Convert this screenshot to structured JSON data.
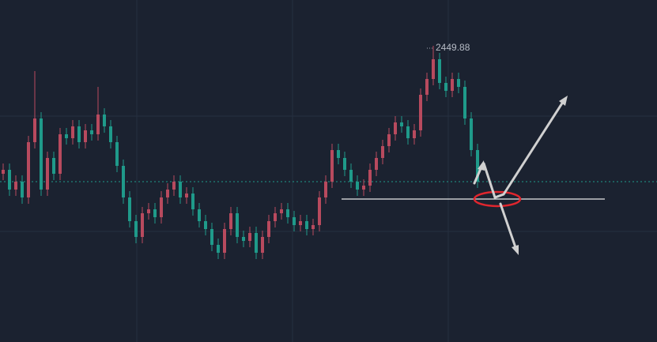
{
  "chart_data": {
    "type": "candlestick",
    "up_color": "#b84a5e",
    "down_color": "#1f9a8a",
    "ylim": [
      2412.38,
      2455.68
    ],
    "open": [
      2433.68,
      2434.18,
      2431.68,
      2432.68,
      2430.68,
      2437.68,
      2440.68,
      2431.68,
      2435.68,
      2433.68,
      2438.68,
      2438.18,
      2439.68,
      2437.68,
      2439.18,
      2438.68,
      2441.18,
      2439.68,
      2437.68,
      2434.68,
      2430.68,
      2427.68,
      2425.68,
      2428.68,
      2429.18,
      2428.18,
      2430.68,
      2431.68,
      2432.68,
      2430.68,
      2431.18,
      2429.18,
      2427.68,
      2426.68,
      2424.68,
      2423.68,
      2426.68,
      2428.68,
      2425.68,
      2425.18,
      2426.18,
      2423.68,
      2425.68,
      2427.68,
      2428.68,
      2429.18,
      2428.18,
      2427.18,
      2427.68,
      2426.68,
      2427.18,
      2430.68,
      2432.68,
      2436.68,
      2435.68,
      2434.18,
      2432.68,
      2431.68,
      2432.18,
      2434.18,
      2435.68,
      2437.18,
      2438.68,
      2440.18,
      2439.68,
      2438.18,
      2439.18,
      2443.68,
      2445.68,
      2448.18,
      2445.18,
      2444.18,
      2445.68,
      2444.68,
      2440.68,
      2436.68
    ],
    "high": [
      2434.98,
      2434.98,
      2433.48,
      2433.48,
      2438.48,
      2446.68,
      2441.48,
      2436.48,
      2436.48,
      2439.48,
      2439.48,
      2440.48,
      2440.48,
      2439.98,
      2439.98,
      2444.68,
      2441.98,
      2440.48,
      2438.48,
      2435.48,
      2431.48,
      2428.48,
      2429.48,
      2429.98,
      2429.98,
      2431.48,
      2432.48,
      2433.48,
      2433.48,
      2431.98,
      2431.98,
      2429.98,
      2428.48,
      2427.48,
      2425.48,
      2427.48,
      2429.48,
      2429.48,
      2426.48,
      2426.98,
      2426.98,
      2426.48,
      2428.48,
      2429.48,
      2429.98,
      2429.98,
      2428.98,
      2428.48,
      2428.48,
      2427.98,
      2431.48,
      2433.48,
      2437.48,
      2437.48,
      2436.48,
      2434.98,
      2433.48,
      2432.98,
      2434.98,
      2436.48,
      2437.98,
      2439.48,
      2440.98,
      2440.98,
      2440.48,
      2439.98,
      2444.48,
      2446.48,
      2449.88,
      2448.98,
      2445.98,
      2446.48,
      2446.48,
      2445.48,
      2441.48,
      2437.48
    ],
    "low": [
      2432.88,
      2430.88,
      2430.88,
      2429.88,
      2429.88,
      2436.88,
      2430.88,
      2430.88,
      2432.88,
      2432.88,
      2437.38,
      2437.38,
      2436.88,
      2436.88,
      2437.88,
      2437.88,
      2438.88,
      2436.88,
      2433.88,
      2429.88,
      2426.88,
      2424.88,
      2424.88,
      2427.88,
      2427.38,
      2427.38,
      2429.88,
      2430.88,
      2429.88,
      2429.88,
      2428.38,
      2426.88,
      2425.88,
      2423.88,
      2422.88,
      2422.88,
      2425.88,
      2424.88,
      2424.38,
      2424.38,
      2422.88,
      2422.88,
      2424.88,
      2426.88,
      2427.88,
      2427.38,
      2426.38,
      2426.38,
      2425.88,
      2425.88,
      2426.38,
      2429.88,
      2431.88,
      2434.88,
      2433.38,
      2431.88,
      2430.88,
      2430.88,
      2431.38,
      2433.38,
      2434.88,
      2436.38,
      2437.88,
      2438.88,
      2437.38,
      2437.38,
      2438.38,
      2442.88,
      2444.88,
      2444.38,
      2443.38,
      2443.38,
      2443.88,
      2439.88,
      2435.88,
      2431.88
    ],
    "close": [
      2434.18,
      2431.68,
      2432.68,
      2430.68,
      2437.68,
      2440.68,
      2431.68,
      2435.68,
      2433.68,
      2438.68,
      2438.18,
      2439.68,
      2437.68,
      2439.18,
      2438.68,
      2441.18,
      2439.68,
      2437.68,
      2434.68,
      2430.68,
      2427.68,
      2425.68,
      2428.68,
      2429.18,
      2428.18,
      2430.68,
      2431.68,
      2432.68,
      2430.68,
      2431.18,
      2429.18,
      2427.68,
      2426.68,
      2424.68,
      2423.68,
      2426.68,
      2428.68,
      2425.68,
      2425.18,
      2426.18,
      2423.68,
      2425.68,
      2427.68,
      2428.68,
      2429.18,
      2428.18,
      2427.18,
      2427.68,
      2426.68,
      2427.18,
      2430.68,
      2432.68,
      2436.68,
      2435.68,
      2434.18,
      2432.68,
      2431.68,
      2432.18,
      2434.18,
      2435.68,
      2437.18,
      2438.68,
      2440.18,
      2439.68,
      2438.18,
      2439.18,
      2443.68,
      2445.68,
      2448.18,
      2445.18,
      2444.18,
      2445.68,
      2444.68,
      2440.68,
      2436.68,
      2432.68
    ]
  }
}
